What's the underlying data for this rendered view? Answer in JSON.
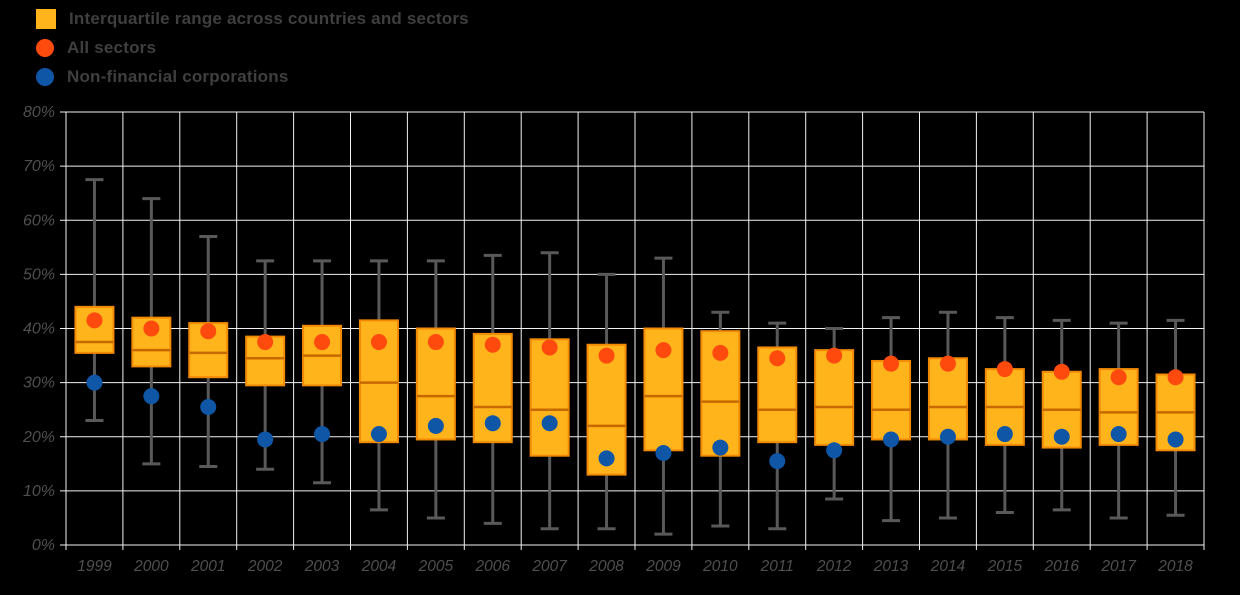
{
  "colors": {
    "background": "#000000",
    "grid": "#f2f2f2",
    "box_fill": "#FFB41C",
    "box_stroke": "#F28A06",
    "median": "#C66A00",
    "whisker": "#595959",
    "all_sectors_dot": "#FF4A0E",
    "nfc_dot": "#0F57A6",
    "tick_text": "#4f4f4f",
    "legend_text": "#3f3f3f"
  },
  "chart_data": {
    "type": "boxplot",
    "title": "",
    "xlabel": "",
    "ylabel": "",
    "grid": true,
    "legend_position": "top-left",
    "ylim": [
      0,
      80
    ],
    "y_ticks": [
      "0%",
      "10%",
      "20%",
      "30%",
      "40%",
      "50%",
      "60%",
      "70%",
      "80%"
    ],
    "categories": [
      "1999",
      "2000",
      "2001",
      "2002",
      "2003",
      "2004",
      "2005",
      "2006",
      "2007",
      "2008",
      "2009",
      "2010",
      "2011",
      "2012",
      "2013",
      "2014",
      "2015",
      "2016",
      "2017",
      "2018"
    ],
    "value_order": [
      "whisker_low",
      "q1",
      "median",
      "q3",
      "whisker_high"
    ],
    "series": [
      {
        "name": "Interquartile range across countries and sectors",
        "type": "box",
        "values": [
          [
            23,
            35.5,
            37.5,
            44,
            67.5
          ],
          [
            15,
            33,
            36,
            42,
            64
          ],
          [
            14.5,
            31,
            35.5,
            41,
            57
          ],
          [
            14,
            29.5,
            34.5,
            38.5,
            52.5
          ],
          [
            11.5,
            29.5,
            35,
            40.5,
            52.5
          ],
          [
            6.5,
            19,
            30,
            41.5,
            52.5
          ],
          [
            5,
            19.5,
            27.5,
            40,
            52.5
          ],
          [
            4,
            19,
            25.5,
            39,
            53.5
          ],
          [
            3,
            16.5,
            25,
            38,
            54
          ],
          [
            3,
            13,
            22,
            37,
            50
          ],
          [
            2,
            17.5,
            27.5,
            40,
            53
          ],
          [
            3.5,
            16.5,
            26.5,
            39.5,
            43
          ],
          [
            3,
            19,
            25,
            36.5,
            41
          ],
          [
            8.5,
            18.5,
            25.5,
            36,
            40
          ],
          [
            4.5,
            19.5,
            25,
            34,
            42
          ],
          [
            5,
            19.5,
            25.5,
            34.5,
            43
          ],
          [
            6,
            18.5,
            25.5,
            32.5,
            42
          ],
          [
            6.5,
            18,
            25,
            32,
            41.5
          ],
          [
            5,
            18.5,
            24.5,
            32.5,
            41
          ],
          [
            5.5,
            17.5,
            24.5,
            31.5,
            41.5
          ]
        ]
      },
      {
        "name": "All sectors",
        "type": "point",
        "values": [
          41.5,
          40,
          39.5,
          37.5,
          37.5,
          37.5,
          37.5,
          37,
          36.5,
          35,
          36,
          35.5,
          34.5,
          35,
          33.5,
          33.5,
          32.5,
          32,
          31,
          31
        ]
      },
      {
        "name": "Non-financial corporations",
        "type": "point",
        "values": [
          30,
          27.5,
          25.5,
          19.5,
          20.5,
          20.5,
          22,
          22.5,
          22.5,
          16,
          17,
          18,
          15.5,
          17.5,
          19.5,
          20,
          20.5,
          20,
          20.5,
          19.5
        ]
      }
    ]
  }
}
